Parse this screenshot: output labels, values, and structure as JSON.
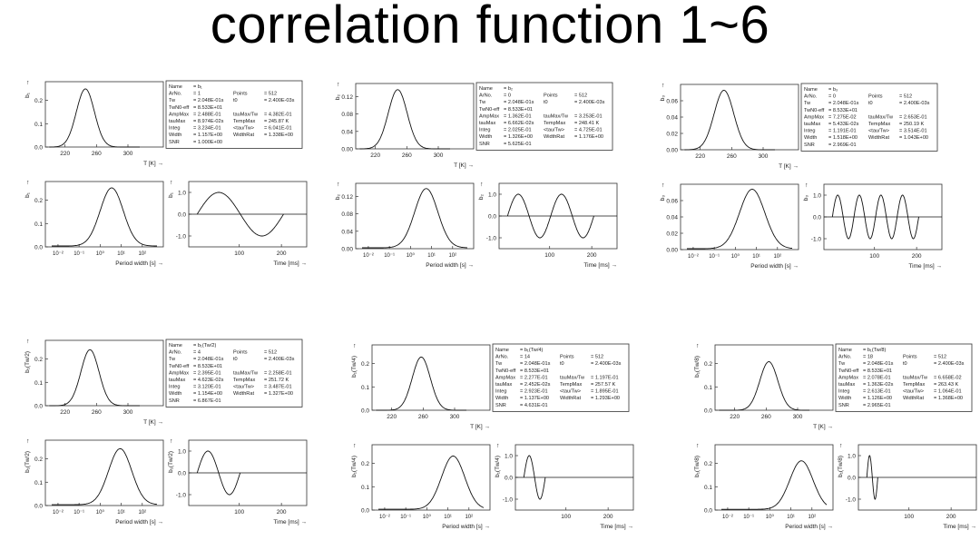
{
  "title": "correlation function 1~6",
  "colors": {
    "line": "#111111",
    "axis": "#333333",
    "text": "#222222",
    "background": "#ffffff"
  },
  "labels": {
    "arrow": "→",
    "arrow_up": "↑",
    "temp_axis": "T [K]",
    "period_axis": "Period width [s]",
    "time_axis": "Time [ms]"
  },
  "chart_data": [
    {
      "id": 1,
      "ylabel": "b₁",
      "info": [
        [
          "Name",
          "= b₁",
          "",
          ""
        ],
        [
          "ArNo.",
          "= 1",
          "Points",
          "= 512"
        ],
        [
          "Tw",
          "= 2.048E-01s",
          "t0",
          "= 2.400E-03s"
        ],
        [
          "TwN0-eff",
          "= 8.533E+01",
          "",
          ""
        ],
        [
          "AmpMax",
          "= 2.488E-01",
          "tauMax/Tw",
          "= 4.382E-01"
        ],
        [
          "tauMax",
          "= 8.974E-02s",
          "TempMax",
          "= 245.87 K"
        ],
        [
          "Integ",
          "= 3.234E-01",
          "<tau/Tw>",
          "= 6.041E-01"
        ],
        [
          "Width",
          "= 1.157E+00",
          "WidthRat",
          "= 1.338E+00"
        ],
        [
          "SNR",
          "= 1.000E+00",
          "",
          ""
        ]
      ],
      "temp": {
        "type": "line",
        "xlabel": "T [K]",
        "xlim": [
          195,
          345
        ],
        "xticks": [
          "220",
          "260",
          "300"
        ],
        "ylim": [
          0,
          0.28
        ],
        "yticks": [
          "0.0",
          "0.1",
          "0.2"
        ],
        "peak_x": 245.9,
        "peak_y": 0.249,
        "width": 11.5
      },
      "period": {
        "type": "line",
        "xlabel": "Period width [s]",
        "xticks": [
          "10⁻²",
          "10⁻¹",
          "10⁰",
          "10¹",
          "10²"
        ],
        "xlim_log": [
          -2.6,
          3.0
        ],
        "ylim": [
          0,
          0.28
        ],
        "yticks": [
          "0.0",
          "0.1",
          "0.2"
        ],
        "peak_x": 0.55,
        "peak_y": 0.249,
        "width": 0.55
      },
      "time": {
        "type": "line",
        "xlabel": "Time [ms]",
        "xlim": [
          -20,
          260
        ],
        "xticks": [
          "100",
          "200"
        ],
        "ylim": [
          -1.5,
          1.5
        ],
        "yticks": [
          "1.0",
          "0.0",
          "-1.0"
        ],
        "cycles": 1,
        "t_end": 205
      }
    },
    {
      "id": 2,
      "ylabel": "b₂",
      "info": [
        [
          "Name",
          "= b₂",
          "",
          ""
        ],
        [
          "ArNo.",
          "= 0",
          "Points",
          "= 512"
        ],
        [
          "Tw",
          "= 2.048E-01s",
          "t0",
          "= 2.400E-03s"
        ],
        [
          "TwN0-eff",
          "= 8.533E+01",
          "",
          ""
        ],
        [
          "AmpMax",
          "= 1.362E-01",
          "tauMax/Tw",
          "= 3.253E-01"
        ],
        [
          "tauMax",
          "= 6.662E-02s",
          "TempMax",
          "= 248.41 K"
        ],
        [
          "Integ",
          "= 2.025E-01",
          "<tau/Tw>",
          "= 4.725E-01"
        ],
        [
          "Width",
          "= 1.326E+00",
          "WidthRat",
          "= 1.176E+00"
        ],
        [
          "SNR",
          "= 5.625E-01",
          "",
          ""
        ]
      ],
      "temp": {
        "type": "line",
        "xlabel": "T [K]",
        "xlim": [
          195,
          345
        ],
        "xticks": [
          "220",
          "260",
          "300"
        ],
        "ylim": [
          0,
          0.15
        ],
        "yticks": [
          "0.00",
          "0.04",
          "0.08",
          "0.12"
        ],
        "peak_x": 248.4,
        "peak_y": 0.136,
        "width": 12
      },
      "period": {
        "type": "line",
        "xlabel": "Period width [s]",
        "xticks": [
          "10⁻²",
          "10⁻¹",
          "10⁰",
          "10¹",
          "10²"
        ],
        "xlim_log": [
          -2.6,
          3.0
        ],
        "ylim": [
          0,
          0.15
        ],
        "yticks": [
          "0.00",
          "0.04",
          "0.08",
          "0.12"
        ],
        "peak_x": 0.75,
        "peak_y": 0.136,
        "width": 0.55
      },
      "time": {
        "type": "line",
        "xlabel": "Time [ms]",
        "xlim": [
          -20,
          260
        ],
        "xticks": [
          "100",
          "200"
        ],
        "ylim": [
          -1.5,
          1.5
        ],
        "yticks": [
          "1.0",
          "0.0",
          "-1.0"
        ],
        "cycles": 2,
        "t_end": 205
      }
    },
    {
      "id": 3,
      "ylabel": "b₃",
      "info": [
        [
          "Name",
          "= b₃",
          "",
          ""
        ],
        [
          "ArNo.",
          "= 0",
          "Points",
          "= 512"
        ],
        [
          "Tw",
          "= 2.048E-01s",
          "t0",
          "= 2.400E-03s"
        ],
        [
          "TwN0-eff",
          "= 8.533E+01",
          "",
          ""
        ],
        [
          "AmpMax",
          "= 7.275E-02",
          "tauMax/Tw",
          "= 2.653E-01"
        ],
        [
          "tauMax",
          "= 5.433E-02s",
          "TempMax",
          "= 250.19 K"
        ],
        [
          "Integ",
          "= 1.191E-01",
          "<tau/Tw>",
          "= 3.514E-01"
        ],
        [
          "Width",
          "= 1.518E+00",
          "WidthRat",
          "= 1.043E+00"
        ],
        [
          "SNR",
          "= 2.969E-01",
          "",
          ""
        ]
      ],
      "temp": {
        "type": "line",
        "xlabel": "T [K]",
        "xlim": [
          195,
          345
        ],
        "xticks": [
          "220",
          "260",
          "300"
        ],
        "ylim": [
          0,
          0.08
        ],
        "yticks": [
          "0.00",
          "0.02",
          "0.04",
          "0.06"
        ],
        "peak_x": 250.2,
        "peak_y": 0.0728,
        "width": 12.5
      },
      "period": {
        "type": "line",
        "xlabel": "Period width [s]",
        "xticks": [
          "10⁻²",
          "10⁻¹",
          "10⁰",
          "10¹",
          "10²"
        ],
        "xlim_log": [
          -2.6,
          3.0
        ],
        "ylim": [
          0,
          0.08
        ],
        "yticks": [
          "0.00",
          "0.02",
          "0.04",
          "0.06"
        ],
        "peak_x": 0.8,
        "peak_y": 0.0728,
        "width": 0.6
      },
      "time": {
        "type": "line",
        "xlabel": "Time [ms]",
        "xlim": [
          -20,
          260
        ],
        "xticks": [
          "100",
          "200"
        ],
        "ylim": [
          -1.5,
          1.5
        ],
        "yticks": [
          "1.0",
          "0.0",
          "-1.0"
        ],
        "cycles": 4,
        "t_end": 205
      }
    },
    {
      "id": 4,
      "ylabel": "b₁(Tw/2)",
      "info": [
        [
          "Name",
          "= b₁(Tw/2)",
          "",
          ""
        ],
        [
          "ArNo.",
          "= 4",
          "Points",
          "= 512"
        ],
        [
          "Tw",
          "= 2.048E-01s",
          "t0",
          "= 2.400E-03s"
        ],
        [
          "TwN0-eff",
          "= 8.533E+01",
          "",
          ""
        ],
        [
          "AmpMax",
          "= 2.395E-01",
          "tauMax/Tw",
          "= 2.258E-01"
        ],
        [
          "tauMax",
          "= 4.623E-02s",
          "TempMax",
          "= 251.72 K"
        ],
        [
          "Integ",
          "= 3.120E-01",
          "<tau/Tw>",
          "= 3.487E-01"
        ],
        [
          "Width",
          "= 1.154E+00",
          "WidthRat",
          "= 1.327E+00"
        ],
        [
          "SNR",
          "= 6.867E-01",
          "",
          ""
        ]
      ],
      "temp": {
        "type": "line",
        "xlabel": "T [K]",
        "xlim": [
          195,
          345
        ],
        "xticks": [
          "220",
          "260",
          "300"
        ],
        "ylim": [
          0,
          0.28
        ],
        "yticks": [
          "0.0",
          "0.1",
          "0.2"
        ],
        "peak_x": 251.7,
        "peak_y": 0.24,
        "width": 11.5
      },
      "period": {
        "type": "line",
        "xlabel": "Period width [s]",
        "xticks": [
          "10⁻²",
          "10⁻¹",
          "10⁰",
          "10¹",
          "10²"
        ],
        "xlim_log": [
          -2.6,
          3.0
        ],
        "ylim": [
          0,
          0.28
        ],
        "yticks": [
          "0.0",
          "0.1",
          "0.2"
        ],
        "peak_x": 0.95,
        "peak_y": 0.24,
        "width": 0.55
      },
      "time": {
        "type": "line",
        "xlabel": "Time [ms]",
        "xlim": [
          -20,
          260
        ],
        "xticks": [
          "100",
          "200"
        ],
        "ylim": [
          -1.5,
          1.5
        ],
        "yticks": [
          "1.0",
          "0.0",
          "-1.0"
        ],
        "cycles": 1,
        "t_end": 102
      }
    },
    {
      "id": 5,
      "ylabel": "b₁(Tw/4)",
      "info": [
        [
          "Name",
          "= b₁(Tw/4)",
          "",
          ""
        ],
        [
          "ArNo.",
          "= 14",
          "Points",
          "= 512"
        ],
        [
          "Tw",
          "= 2.048E-01s",
          "t0",
          "= 2.400E-03s"
        ],
        [
          "TwN0-eff",
          "= 8.533E+01",
          "",
          ""
        ],
        [
          "AmpMax",
          "= 2.277E-01",
          "tauMax/Tw",
          "= 1.197E-01"
        ],
        [
          "tauMax",
          "= 2.452E-02s",
          "TempMax",
          "= 257.57 K"
        ],
        [
          "Integ",
          "= 2.923E-01",
          "<tau/Tw>",
          "= 1.895E-01"
        ],
        [
          "Width",
          "= 1.137E+00",
          "WidthRat",
          "= 1.293E+00"
        ],
        [
          "SNR",
          "= 4.631E-01",
          "",
          ""
        ]
      ],
      "temp": {
        "type": "line",
        "xlabel": "T [K]",
        "xlim": [
          195,
          345
        ],
        "xticks": [
          "220",
          "260",
          "300"
        ],
        "ylim": [
          0,
          0.28
        ],
        "yticks": [
          "0.0",
          "0.1",
          "0.2"
        ],
        "peak_x": 257.6,
        "peak_y": 0.228,
        "width": 11.5
      },
      "period": {
        "type": "line",
        "xlabel": "Period width [s]",
        "xticks": [
          "10⁻²",
          "10⁻¹",
          "10⁰",
          "10¹",
          "10²"
        ],
        "xlim_log": [
          -2.6,
          3.0
        ],
        "ylim": [
          0,
          0.28
        ],
        "yticks": [
          "0.0",
          "0.1",
          "0.2"
        ],
        "peak_x": 1.25,
        "peak_y": 0.228,
        "width": 0.55
      },
      "time": {
        "type": "line",
        "xlabel": "Time [ms]",
        "xlim": [
          -20,
          260
        ],
        "xticks": [
          "100",
          "200"
        ],
        "ylim": [
          -1.5,
          1.5
        ],
        "yticks": [
          "1.0",
          "0.0",
          "-1.0"
        ],
        "cycles": 1,
        "t_end": 51
      }
    },
    {
      "id": 6,
      "ylabel": "b₁(Tw/8)",
      "info": [
        [
          "Name",
          "= b₁(Tw/8)",
          "",
          ""
        ],
        [
          "ArNo.",
          "= 18",
          "Points",
          "= 512"
        ],
        [
          "Tw",
          "= 2.048E-01s",
          "t0",
          "= 2.400E-03s"
        ],
        [
          "TwN0-eff",
          "= 8.533E+01",
          "",
          ""
        ],
        [
          "AmpMax",
          "= 2.078E-01",
          "tauMax/Tw",
          "= 6.658E-02"
        ],
        [
          "tauMax",
          "= 1.363E-02s",
          "TempMax",
          "= 263.43 K"
        ],
        [
          "Integ",
          "= 2.613E-01",
          "<tau/Tw>",
          "= 1.064E-01"
        ],
        [
          "Width",
          "= 1.126E+00",
          "WidthRat",
          "= 1.368E+00"
        ],
        [
          "SNR",
          "= 2.965E-01",
          "",
          ""
        ]
      ],
      "temp": {
        "type": "line",
        "xlabel": "T [K]",
        "xlim": [
          195,
          345
        ],
        "xticks": [
          "220",
          "260",
          "300"
        ],
        "ylim": [
          0,
          0.28
        ],
        "yticks": [
          "0.0",
          "0.1",
          "0.2"
        ],
        "peak_x": 263.4,
        "peak_y": 0.208,
        "width": 11.5
      },
      "period": {
        "type": "line",
        "xlabel": "Period width [s]",
        "xticks": [
          "10⁻²",
          "10⁻¹",
          "10⁰",
          "10¹",
          "10²"
        ],
        "xlim_log": [
          -2.6,
          3.0
        ],
        "ylim": [
          0,
          0.28
        ],
        "yticks": [
          "0.0",
          "0.1",
          "0.2"
        ],
        "peak_x": 1.5,
        "peak_y": 0.208,
        "width": 0.55
      },
      "time": {
        "type": "line",
        "xlabel": "Time [ms]",
        "xlim": [
          -20,
          260
        ],
        "xticks": [
          "100",
          "200"
        ],
        "ylim": [
          -1.5,
          1.5
        ],
        "yticks": [
          "1.0",
          "0.0",
          "-1.0"
        ],
        "cycles": 1,
        "t_end": 26
      }
    }
  ]
}
